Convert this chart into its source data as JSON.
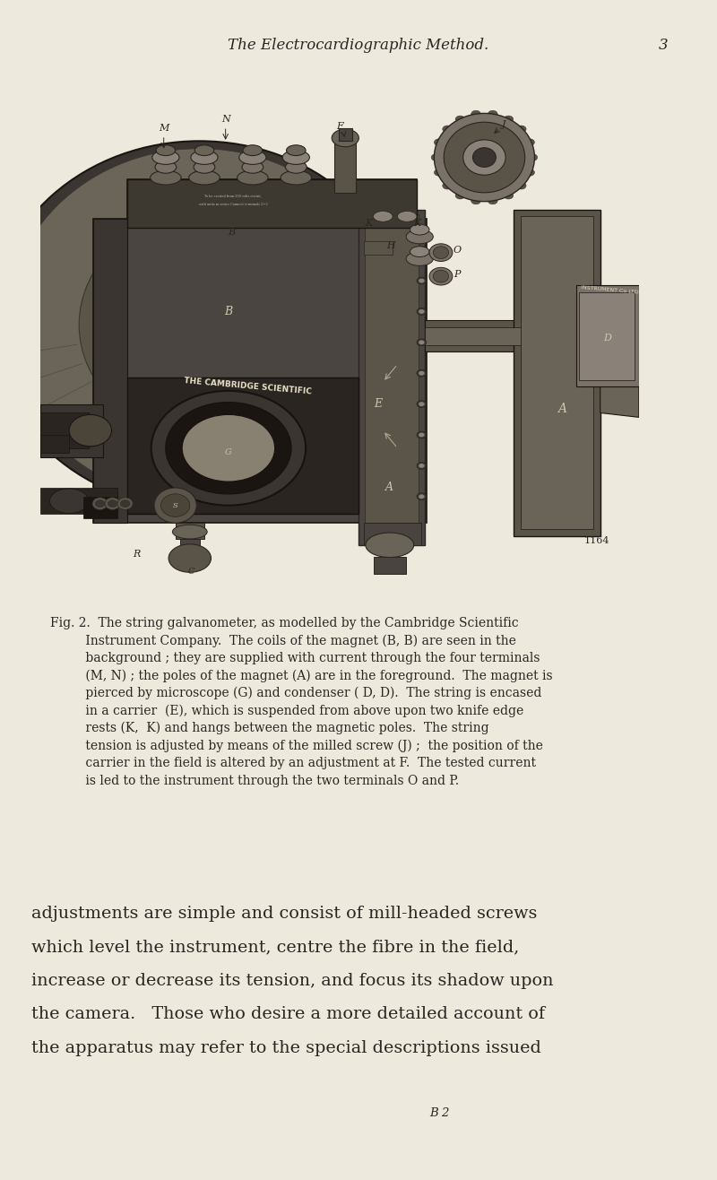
{
  "bg_color": "#ede9dc",
  "page_width": 8.0,
  "page_height": 13.16,
  "text_color": "#2a2520",
  "header_text": "The Electrocardiographic Method.",
  "header_page_num": "3",
  "header_fontsize": 12.0,
  "caption_fontsize": 10.0,
  "body_fontsize": 13.8,
  "footer_fontsize": 9.5,
  "caption_lines": [
    "Fig. 2.  The string galvanometer, as modelled by the Cambridge Scientific",
    "         Instrument Company.  The coils of the magnet (B, B) are seen in the",
    "         background ; they are supplied with current through the four terminals",
    "         (M, N) ; the poles of the magnet (A) are in the foreground.  The magnet is",
    "         pierced by microscope (G) and condenser ( D, D).  The string is encased",
    "         in a carrier  (E), which is suspended from above upon two knife edge",
    "         rests (K,  K) and hangs between the magnetic poles.  The string",
    "         tension is adjusted by means of the milled screw (J) ;  the position of the",
    "         carrier in the field is altered by an adjustment at F.  The tested current",
    "         is led to the instrument through the two terminals O and P."
  ],
  "body_lines": [
    "adjustments are simple and consist of mill-headed screws",
    "which level the instrument, centre the fibre in the field,",
    "increase or decrease its tension, and focus its shadow upon",
    "the camera.   Those who desire a more detailed account of",
    "the apparatus may refer to the special descriptions issued"
  ],
  "footer_text": "B 2"
}
